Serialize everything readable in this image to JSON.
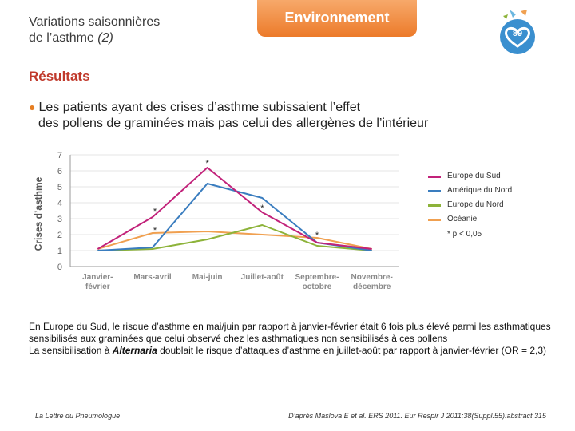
{
  "header": {
    "title_line1": "Variations saisonnières",
    "title_line2_main": "de l’asthme ",
    "title_line2_paren": "(2)",
    "tab_label": "Environnement",
    "badge_number": "89"
  },
  "section_title": "Résultats",
  "bullet": {
    "line1": "Les patients ayant des crises d’asthme subissaient l’effet",
    "line2": "des pollens de graminées mais pas celui des allergènes de l’intérieur"
  },
  "chart_data": {
    "type": "line",
    "ylabel": "Crises d’asthme",
    "ylim": [
      0,
      7
    ],
    "yticks": [
      "0",
      "1",
      "2",
      "3",
      "4",
      "5",
      "6",
      "7"
    ],
    "categories": [
      [
        "Janvier-",
        "février"
      ],
      [
        "Mars-avril"
      ],
      [
        "Mai-juin"
      ],
      [
        "Juillet-août"
      ],
      [
        "Septembre-",
        "octobre"
      ],
      [
        "Novembre-",
        "décembre"
      ]
    ],
    "series": [
      {
        "name": "Europe du Sud",
        "color": "#c2227a",
        "values": [
          1.1,
          3.1,
          6.2,
          3.4,
          1.5,
          1.1
        ]
      },
      {
        "name": "Amérique du Nord",
        "color": "#3a7dbf",
        "values": [
          1.0,
          1.2,
          5.2,
          4.3,
          1.5,
          1.0
        ]
      },
      {
        "name": "Europe du Nord",
        "color": "#8db33a",
        "values": [
          1.0,
          1.1,
          1.7,
          2.6,
          1.3,
          1.0
        ]
      },
      {
        "name": "Océanie",
        "color": "#f0a050",
        "values": [
          1.1,
          2.1,
          2.2,
          2.0,
          1.8,
          1.1
        ]
      }
    ],
    "asterisks": [
      {
        "label": "*",
        "category_index": 2,
        "value": 6.5
      },
      {
        "label": "*",
        "category_index": 1,
        "value": 3.5
      },
      {
        "label": "*",
        "category_index": 1,
        "value": 2.3
      },
      {
        "label": "*",
        "category_index": 3,
        "value": 3.7
      },
      {
        "label": "*",
        "category_index": 4,
        "value": 2.0
      }
    ],
    "note": "* p < 0,05"
  },
  "caption": {
    "para1": "En Europe du Sud, le risque d’asthme en mai/juin par rapport à janvier-février était 6 fois plus élevé parmi les asthmatiques sensibilisés aux graminées que celui observé chez les asthmatiques non sensibilisés à ces pollens",
    "para2_before": "La sensibilisation à ",
    "para2_italic": "Alternaria",
    "para2_after": " doublait le risque d’attaques d’asthme en juillet-août par rapport à janvier-février (OR = 2,3)"
  },
  "footer": {
    "journal": "La Lettre du Pneumologue",
    "reference": "D’après Maslova E et al. ERS 2011. Eur Respir J 2011;38(Suppl.55):abstract 315"
  }
}
